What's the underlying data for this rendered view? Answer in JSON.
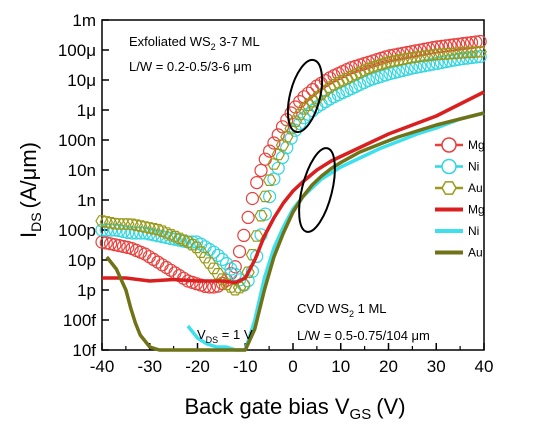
{
  "chart_data": {
    "type": "scatter",
    "title": "",
    "xlabel": {
      "main": "Back gate bias V",
      "sub": "GS",
      "unit": "(V)"
    },
    "ylabel": {
      "main": "I",
      "sub": "DS",
      "unit": "(A/μm)"
    },
    "xlim": [
      -40,
      40
    ],
    "ylim_log10": [
      -14,
      -3
    ],
    "log_y": true,
    "grid": false,
    "x_ticks": [
      -40,
      -30,
      -20,
      -10,
      0,
      10,
      20,
      30,
      40
    ],
    "y_ticks": [
      {
        "exp": -3,
        "label": "1m"
      },
      {
        "exp": -4,
        "label": "100μ"
      },
      {
        "exp": -5,
        "label": "10μ"
      },
      {
        "exp": -6,
        "label": "1μ"
      },
      {
        "exp": -7,
        "label": "100n"
      },
      {
        "exp": -8,
        "label": "10n"
      },
      {
        "exp": -9,
        "label": "1n"
      },
      {
        "exp": -10,
        "label": "100p"
      },
      {
        "exp": -11,
        "label": "10p"
      },
      {
        "exp": -12,
        "label": "1p"
      },
      {
        "exp": -13,
        "label": "100f"
      },
      {
        "exp": -14,
        "label": "10f"
      }
    ],
    "annotations": {
      "exf_line1_pre": "Exfoliated WS",
      "exf_line1_sub": "2",
      "exf_line1_post": " 3-7 ML",
      "exf_line2": "L/W = 0.2-0.5/3-6 μm",
      "cvd_line1_pre": "CVD WS",
      "cvd_line1_sub": "2",
      "cvd_line1_post": " 1 ML",
      "cvd_line2": "L/W = 0.5-0.75/104 μm",
      "vds_pre": "V",
      "vds_sub": "DS",
      "vds_post": " = 1 V"
    },
    "legend_position": "right",
    "series": [
      {
        "name": "Mg",
        "kind": "marker",
        "color": "#e8403c",
        "x": [
          -40,
          -37,
          -34,
          -31,
          -28,
          -25,
          -22,
          -20,
          -18,
          -16,
          -14,
          -12,
          -10,
          -8,
          -6,
          -4,
          -2,
          0,
          2,
          5,
          8,
          12,
          16,
          20,
          25,
          30,
          35,
          40
        ],
        "y": [
          -10.4,
          -10.5,
          -10.6,
          -10.8,
          -11.1,
          -11.4,
          -11.7,
          -11.8,
          -11.9,
          -11.9,
          -11.7,
          -11.2,
          -10.0,
          -8.6,
          -7.7,
          -7.1,
          -6.5,
          -6.0,
          -5.6,
          -5.2,
          -4.9,
          -4.6,
          -4.4,
          -4.2,
          -4.05,
          -3.9,
          -3.8,
          -3.7
        ]
      },
      {
        "name": "Ni",
        "kind": "marker",
        "color": "#31d6e0",
        "x": [
          -40,
          -37,
          -34,
          -31,
          -28,
          -25,
          -22,
          -20,
          -18,
          -16,
          -14,
          -12,
          -10,
          -8,
          -6,
          -4,
          -2,
          0,
          2,
          5,
          8,
          12,
          16,
          20,
          25,
          30,
          35,
          40
        ],
        "y": [
          -10.0,
          -10.0,
          -10.1,
          -10.1,
          -10.2,
          -10.3,
          -10.4,
          -10.4,
          -10.6,
          -10.8,
          -11.1,
          -11.5,
          -11.9,
          -11.2,
          -9.6,
          -8.3,
          -7.5,
          -6.8,
          -6.3,
          -5.9,
          -5.6,
          -5.3,
          -5.0,
          -4.8,
          -4.6,
          -4.45,
          -4.3,
          -4.2
        ]
      },
      {
        "name": "Au",
        "kind": "marker",
        "color": "#9a9a1a",
        "x": [
          -40,
          -37,
          -34,
          -31,
          -28,
          -25,
          -22,
          -20,
          -18,
          -16,
          -14,
          -12,
          -10,
          -8,
          -6,
          -4,
          -2,
          0,
          2,
          5,
          8,
          12,
          16,
          20,
          25,
          30,
          35,
          40
        ],
        "y": [
          -9.7,
          -9.8,
          -9.8,
          -9.9,
          -10.0,
          -10.2,
          -10.4,
          -10.6,
          -11.0,
          -11.4,
          -11.8,
          -12.0,
          -11.8,
          -10.5,
          -9.0,
          -7.8,
          -7.1,
          -6.5,
          -6.0,
          -5.6,
          -5.2,
          -4.9,
          -4.6,
          -4.4,
          -4.25,
          -4.15,
          -4.1,
          -4.05
        ]
      },
      {
        "name": "Mg",
        "kind": "line",
        "color": "#d91f1f",
        "x": [
          -40,
          -35,
          -30,
          -25,
          -20,
          -15,
          -12,
          -10,
          -8,
          -6,
          -4,
          -2,
          0,
          2,
          5,
          8,
          12,
          16,
          20,
          25,
          30,
          35,
          40
        ],
        "y": [
          -11.6,
          -11.6,
          -11.7,
          -11.65,
          -11.7,
          -11.7,
          -11.75,
          -11.6,
          -11.0,
          -10.2,
          -9.6,
          -9.1,
          -8.7,
          -8.4,
          -8.0,
          -7.7,
          -7.4,
          -7.1,
          -6.8,
          -6.5,
          -6.2,
          -5.8,
          -5.4
        ]
      },
      {
        "name": "Ni",
        "kind": "line",
        "color": "#3ee0ee",
        "x": [
          -22,
          -20,
          -18,
          -16,
          -14,
          -12,
          -10,
          -8,
          -6,
          -4,
          -2,
          0,
          2,
          4,
          6,
          8,
          10,
          14,
          18,
          22,
          26,
          30,
          35,
          40
        ],
        "y": [
          -13.2,
          -13.6,
          -13.8,
          -13.9,
          -13.9,
          -14.0,
          -14.0,
          -13.0,
          -11.6,
          -10.6,
          -9.9,
          -9.3,
          -8.9,
          -8.6,
          -8.3,
          -8.1,
          -7.9,
          -7.6,
          -7.3,
          -7.05,
          -6.8,
          -6.6,
          -6.3,
          -6.1
        ]
      },
      {
        "name": "Au",
        "kind": "line",
        "color": "#6f7217",
        "x": [
          -39,
          -37,
          -35,
          -34,
          -33,
          -32,
          -31,
          -30,
          -28,
          -25,
          -22,
          -20,
          -15,
          -10,
          -8,
          -6,
          -4,
          -2,
          0,
          2,
          4,
          6,
          8,
          10,
          14,
          18,
          22,
          26,
          30,
          35,
          40
        ],
        "y": [
          -10.9,
          -11.3,
          -12.0,
          -12.6,
          -13.1,
          -13.5,
          -13.7,
          -13.9,
          -14.0,
          -14.0,
          -14.0,
          -14.0,
          -14.0,
          -14.0,
          -13.3,
          -12.0,
          -10.9,
          -10.1,
          -9.4,
          -8.9,
          -8.5,
          -8.2,
          -7.95,
          -7.75,
          -7.4,
          -7.15,
          -6.9,
          -6.7,
          -6.5,
          -6.3,
          -6.1
        ]
      }
    ]
  }
}
